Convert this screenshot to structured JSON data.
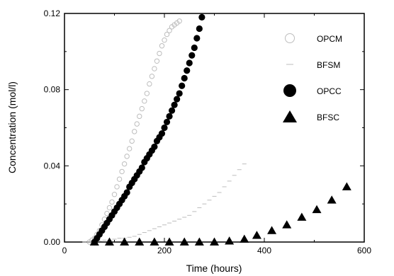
{
  "chart_data": {
    "type": "scatter",
    "xlabel": "Time (hours)",
    "ylabel": "Concentration (mol/l)",
    "xlim": [
      0,
      600
    ],
    "ylim": [
      0,
      0.12
    ],
    "xticks": [
      "0",
      "200",
      "400",
      "600"
    ],
    "yticks": [
      "0.00",
      "0.04",
      "0.08",
      "0.12"
    ],
    "grid": false,
    "legend_position": "top-right",
    "series": [
      {
        "name": "OPCM",
        "marker": "open-circle",
        "color": "#bdbdbd",
        "x": [
          50,
          55,
          60,
          65,
          70,
          75,
          80,
          85,
          90,
          95,
          100,
          105,
          110,
          115,
          120,
          125,
          130,
          135,
          140,
          145,
          150,
          155,
          160,
          165,
          170,
          175,
          180,
          185,
          190,
          195,
          200,
          205,
          210,
          215,
          220,
          225,
          230
        ],
        "y": [
          0,
          0.001,
          0.002,
          0.004,
          0.006,
          0.009,
          0.012,
          0.015,
          0.018,
          0.021,
          0.025,
          0.029,
          0.033,
          0.037,
          0.041,
          0.045,
          0.049,
          0.053,
          0.058,
          0.062,
          0.066,
          0.07,
          0.074,
          0.078,
          0.083,
          0.087,
          0.091,
          0.095,
          0.099,
          0.103,
          0.106,
          0.109,
          0.111,
          0.113,
          0.114,
          0.115,
          0.116
        ]
      },
      {
        "name": "BFSM",
        "marker": "dash",
        "color": "#bdbdbd",
        "x": [
          40,
          50,
          60,
          70,
          80,
          90,
          100,
          110,
          120,
          130,
          140,
          150,
          160,
          170,
          180,
          190,
          200,
          210,
          220,
          230,
          240,
          250,
          260,
          270,
          280,
          290,
          300,
          310,
          320,
          330,
          340,
          350,
          360
        ],
        "y": [
          0,
          0,
          0,
          0.0005,
          0.001,
          0.001,
          0.0015,
          0.002,
          0.002,
          0.0025,
          0.003,
          0.004,
          0.005,
          0.006,
          0.007,
          0.008,
          0.009,
          0.01,
          0.011,
          0.012,
          0.013,
          0.014,
          0.016,
          0.018,
          0.02,
          0.022,
          0.024,
          0.026,
          0.029,
          0.032,
          0.035,
          0.038,
          0.041
        ]
      },
      {
        "name": "OPCC",
        "marker": "filled-circle",
        "color": "#000000",
        "x": [
          60,
          65,
          70,
          75,
          80,
          85,
          90,
          95,
          100,
          105,
          110,
          115,
          120,
          125,
          130,
          135,
          140,
          145,
          150,
          155,
          160,
          165,
          170,
          175,
          180,
          185,
          190,
          195,
          200,
          205,
          210,
          215,
          220,
          225,
          230,
          235,
          240,
          245,
          250,
          255,
          260,
          265,
          270,
          275
        ],
        "y": [
          0,
          0.002,
          0.004,
          0.006,
          0.008,
          0.01,
          0.012,
          0.014,
          0.016,
          0.018,
          0.02,
          0.022,
          0.024,
          0.026,
          0.029,
          0.031,
          0.033,
          0.035,
          0.037,
          0.039,
          0.042,
          0.044,
          0.046,
          0.048,
          0.05,
          0.053,
          0.055,
          0.057,
          0.06,
          0.063,
          0.066,
          0.069,
          0.072,
          0.075,
          0.078,
          0.082,
          0.086,
          0.09,
          0.094,
          0.098,
          0.102,
          0.107,
          0.112,
          0.118
        ]
      },
      {
        "name": "BFSC",
        "marker": "filled-triangle",
        "color": "#000000",
        "x": [
          60,
          90,
          120,
          150,
          180,
          210,
          240,
          270,
          300,
          330,
          360,
          385,
          415,
          445,
          475,
          505,
          535,
          565
        ],
        "y": [
          0,
          0,
          0,
          0,
          0,
          0,
          0,
          0,
          0,
          0.0005,
          0.0015,
          0.0035,
          0.006,
          0.009,
          0.013,
          0.017,
          0.022,
          0.029
        ]
      }
    ]
  }
}
